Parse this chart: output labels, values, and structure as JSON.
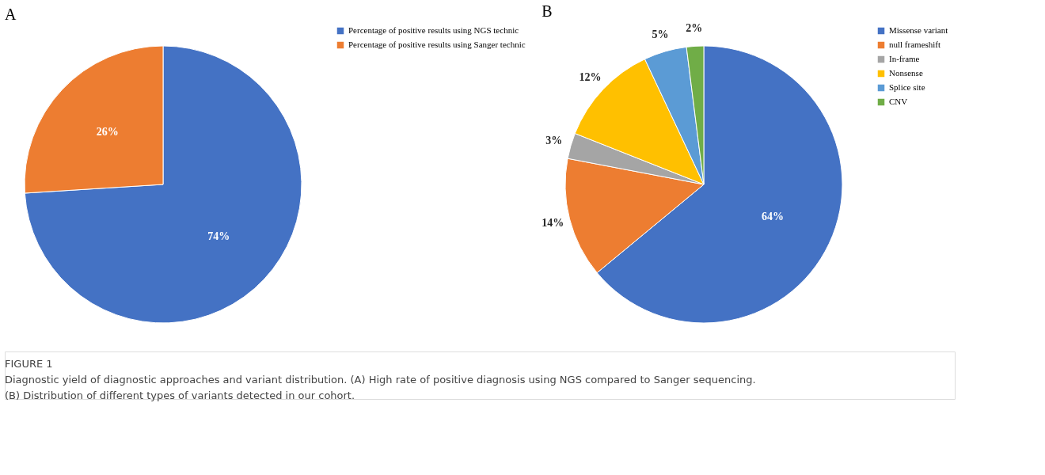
{
  "chart_data": [
    {
      "type": "pie",
      "title": "A",
      "categories": [
        "Percentage of positive results using NGS technic",
        "Percentage of positive results using Sanger technic"
      ],
      "values": [
        74,
        26
      ],
      "colors": [
        "#4472c4",
        "#ed7d31"
      ],
      "value_labels": [
        "74%",
        "26%"
      ],
      "legend": "right",
      "annotations": [
        "FIGURE 1",
        "Diagnostic yield of diagnostic approaches and variant distribution. (A) High rate of positive diagnosis using NGS compared to Sanger sequencing.",
        "(B) Distribution of different types of variants detected in our cohort."
      ]
    },
    {
      "type": "pie",
      "title": "B",
      "categories": [
        "Missense variant",
        "null frameshift",
        "In-frame",
        "Nonsense",
        "Splice site",
        "CNV"
      ],
      "values": [
        64,
        14,
        3,
        12,
        5,
        2
      ],
      "colors": [
        "#4472c4",
        "#ed7d31",
        "#a5a5a5",
        "#ffc000",
        "#5b9bd5",
        "#70ad47"
      ],
      "value_labels": [
        "64%",
        "14%",
        "3%",
        "12%",
        "5%",
        "2%"
      ],
      "legend": "right"
    }
  ]
}
